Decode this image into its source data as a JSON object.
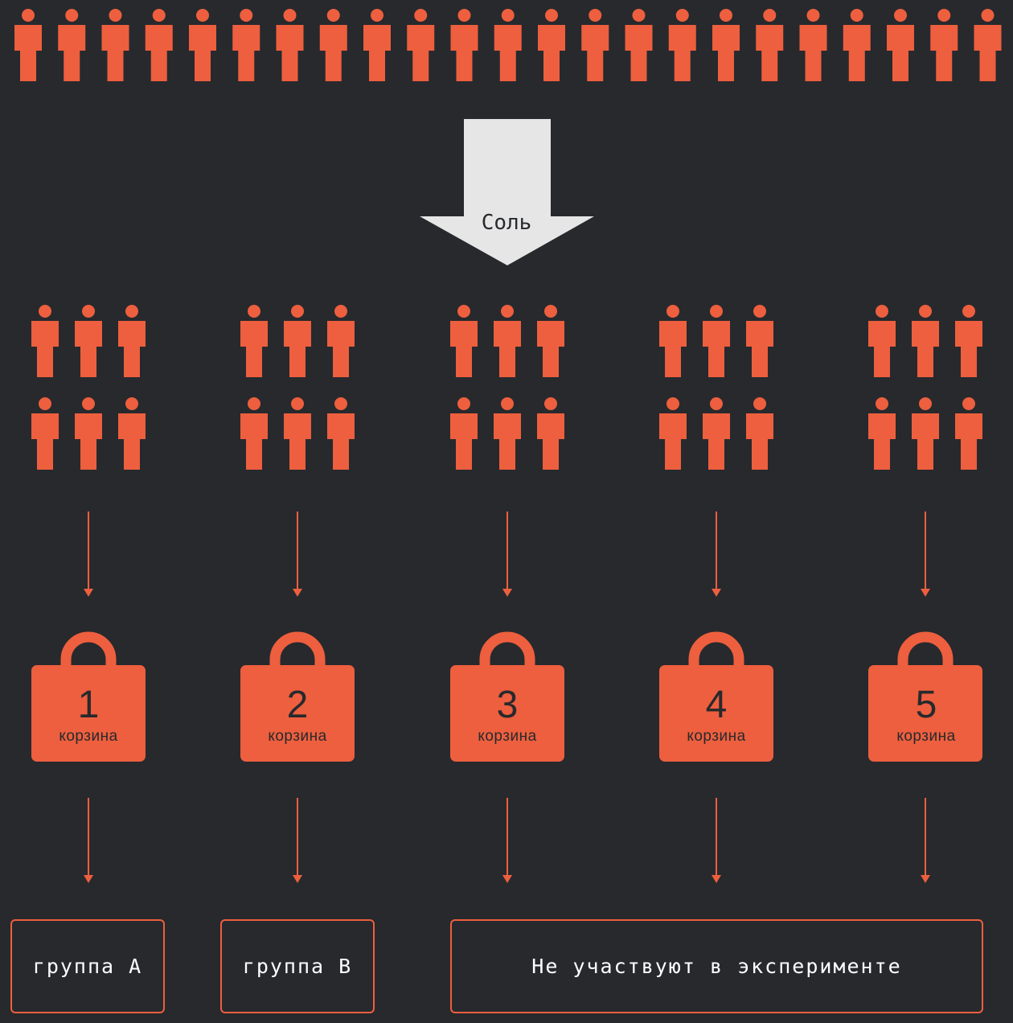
{
  "colors": {
    "background": "#27292d",
    "accent": "#ed5f3e",
    "arrow_fill": "#e6e6e6",
    "text_light": "#ffffff",
    "text_dark": "#27292d"
  },
  "population": {
    "icon": "person-icon",
    "count": 23
  },
  "salt_label": "Соль",
  "buckets": [
    {
      "number": "1",
      "label": "корзина",
      "icon": "person-icon",
      "people": 6
    },
    {
      "number": "2",
      "label": "корзина",
      "icon": "person-icon",
      "people": 6
    },
    {
      "number": "3",
      "label": "корзина",
      "icon": "person-icon",
      "people": 6
    },
    {
      "number": "4",
      "label": "корзина",
      "icon": "person-icon",
      "people": 6
    },
    {
      "number": "5",
      "label": "корзина",
      "icon": "person-icon",
      "people": 6
    }
  ],
  "groups": [
    {
      "label": "группа A"
    },
    {
      "label": "группа B"
    },
    {
      "label": "Не участвуют в эксперименте"
    }
  ]
}
